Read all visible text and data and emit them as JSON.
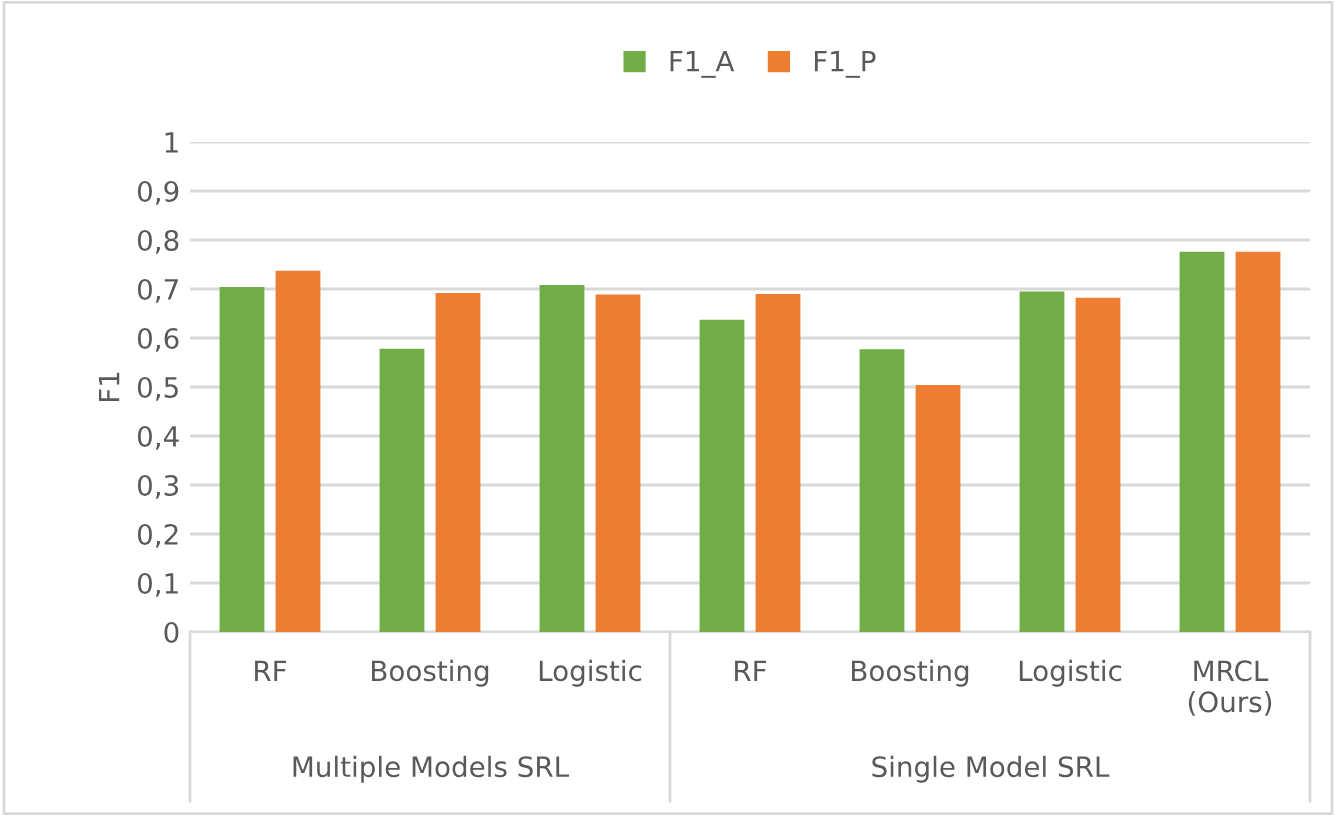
{
  "chart_data": {
    "type": "bar",
    "ylabel": "F1",
    "categories": [
      "RF",
      "Boosting",
      "Logistic",
      "RF",
      "Boosting",
      "Logistic",
      "MRCL\n(Ours)"
    ],
    "series": [
      {
        "name": "F1_A",
        "color": "#70ad47",
        "values": [
          0.704,
          0.578,
          0.708,
          0.637,
          0.577,
          0.695,
          0.776
        ]
      },
      {
        "name": "F1_P",
        "color": "#ed7d31",
        "values": [
          0.737,
          0.692,
          0.689,
          0.69,
          0.504,
          0.682,
          0.776
        ]
      }
    ],
    "annotations": [
      "Multiple Models SRL",
      "Single Model SRL"
    ],
    "ylim": [
      0,
      1
    ],
    "yticks": [
      0,
      {
        "value": 0.1,
        "label": "0,1"
      },
      {
        "value": 0.2,
        "label": "0,2"
      },
      {
        "value": 0.3,
        "label": "0,3"
      },
      {
        "value": 0.4,
        "label": "0,4"
      },
      {
        "value": 0.5,
        "label": "0,5"
      },
      {
        "value": 0.6,
        "label": "0,6"
      },
      {
        "value": 0.7,
        "label": "0,7"
      },
      {
        "value": 0.8,
        "label": "0,8"
      },
      {
        "value": 0.9,
        "label": "0,9"
      },
      1
    ],
    "grid": "y",
    "legend": "top"
  }
}
